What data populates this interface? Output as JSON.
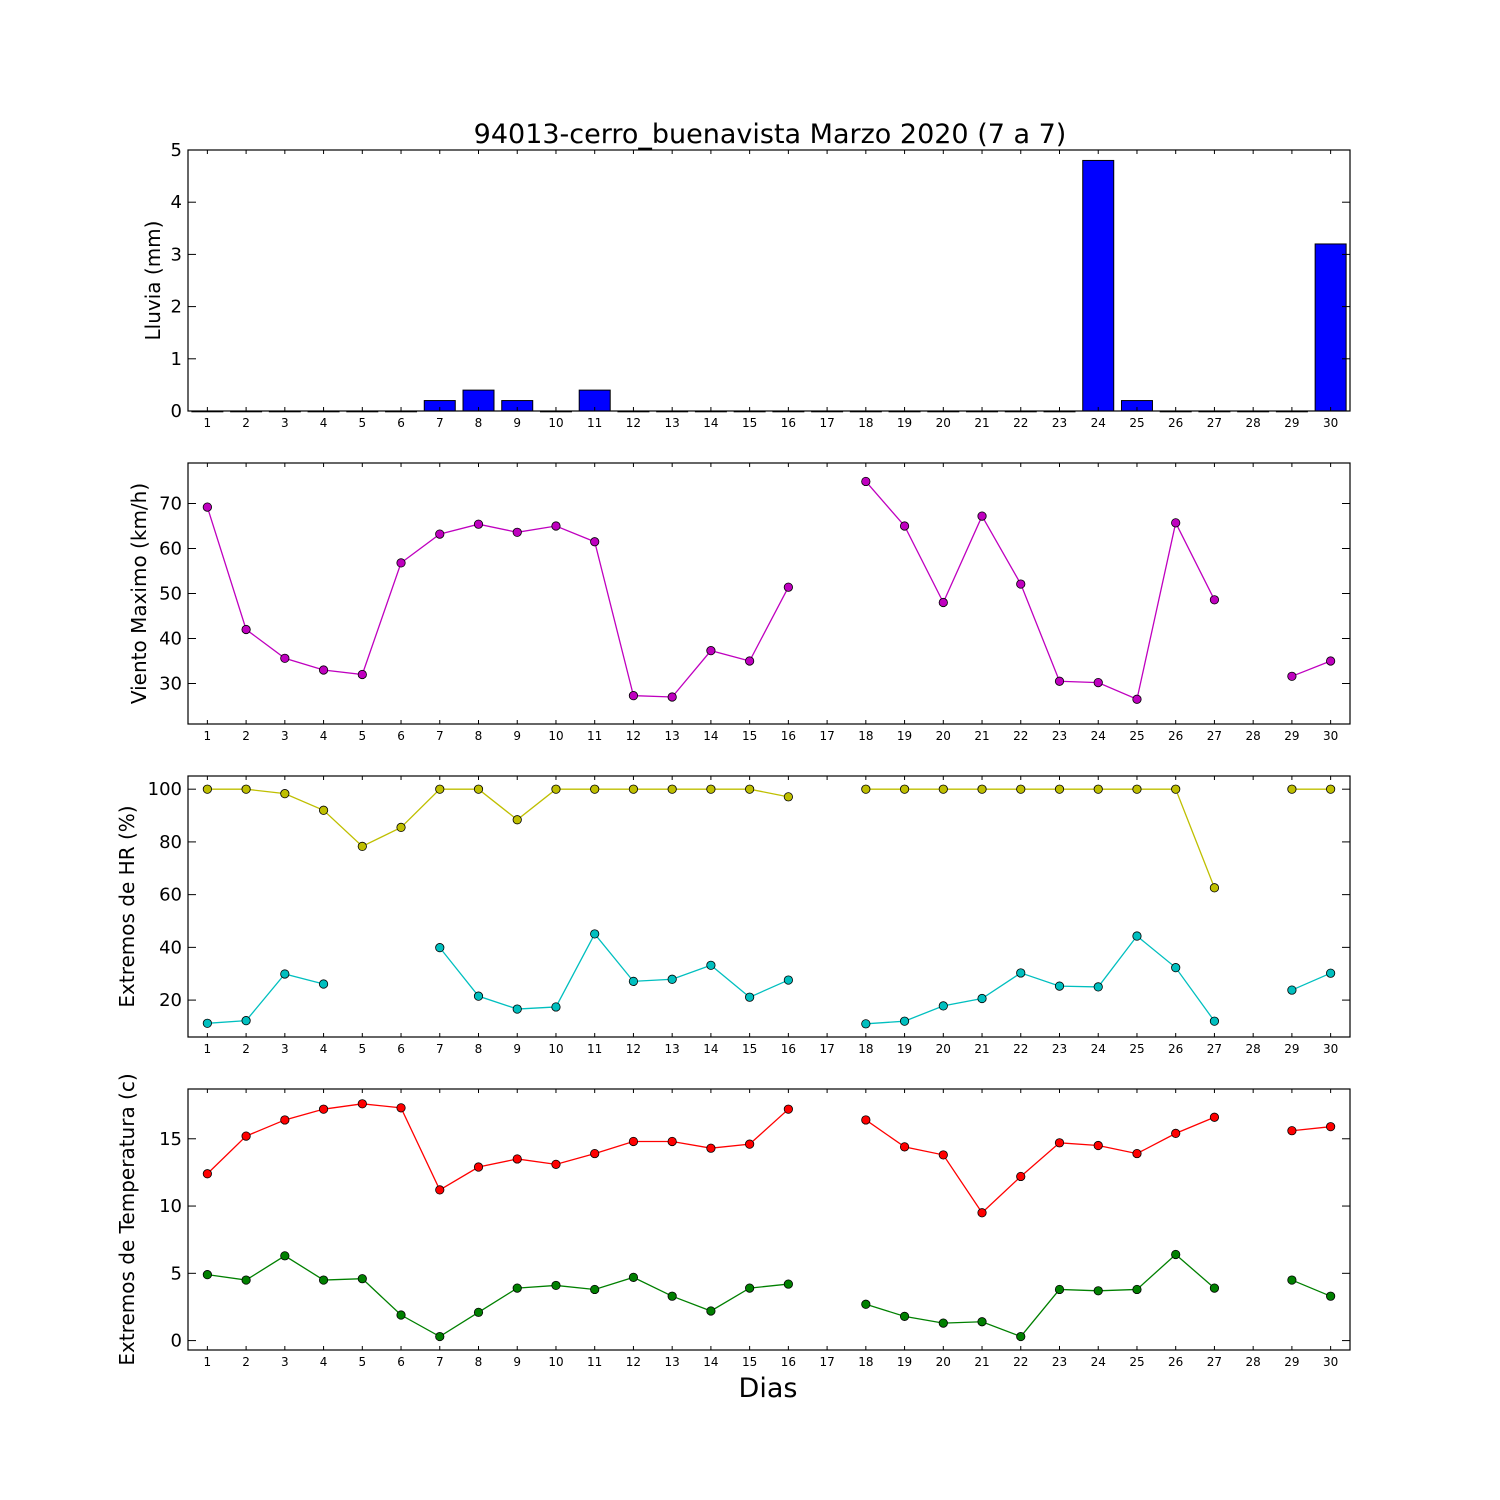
{
  "chart_data": {
    "title": "94013-cerro_buenavista Marzo 2020  (7 a 7)",
    "xlabel": "Dias",
    "x": [
      1,
      2,
      3,
      4,
      5,
      6,
      7,
      8,
      9,
      10,
      11,
      12,
      13,
      14,
      15,
      16,
      17,
      18,
      19,
      20,
      21,
      22,
      23,
      24,
      25,
      26,
      27,
      28,
      29,
      30
    ],
    "panels": [
      {
        "id": "lluvia",
        "type": "bar",
        "ylabel": "Lluvia (mm)",
        "ylim": [
          0,
          5
        ],
        "yticks": [
          0,
          1,
          2,
          3,
          4,
          5
        ],
        "series": [
          {
            "color": "#0000ff",
            "values": [
              0,
              0,
              0,
              0,
              0,
              0,
              0.2,
              0.4,
              0.2,
              0,
              0.4,
              0,
              0,
              0,
              0,
              0,
              0,
              0,
              0,
              0,
              0,
              0,
              0,
              4.8,
              0.2,
              0,
              0,
              0,
              0,
              3.2
            ]
          }
        ]
      },
      {
        "id": "viento",
        "type": "line",
        "ylabel": "Viento Maximo (km/h)",
        "ylim": [
          21,
          79
        ],
        "yticks": [
          30,
          40,
          50,
          60,
          70
        ],
        "series": [
          {
            "color": "#bf00bf",
            "values": [
              69.2,
              42,
              35.6,
              33,
              32,
              56.8,
              63.2,
              65.4,
              63.6,
              65,
              61.5,
              27.3,
              27,
              37.3,
              35,
              51.4,
              null,
              74.9,
              65,
              48,
              67.2,
              52.1,
              30.5,
              30.2,
              26.5,
              65.7,
              48.6,
              null,
              31.6,
              35
            ]
          }
        ]
      },
      {
        "id": "hr",
        "type": "line",
        "ylabel": "Extremos de HR (%)",
        "ylim": [
          6,
          105
        ],
        "yticks": [
          20,
          40,
          60,
          80,
          100
        ],
        "series": [
          {
            "color": "#bfbf00",
            "values": [
              100,
              100,
              98.3,
              92,
              78.3,
              85.5,
              100,
              100,
              88.4,
              100,
              100,
              100,
              100,
              100,
              100,
              97.1,
              null,
              100,
              100,
              100,
              100,
              100,
              100,
              100,
              100,
              100,
              62.6,
              null,
              100,
              100
            ]
          },
          {
            "color": "#00bfbf",
            "values": [
              11.2,
              12.2,
              29.9,
              26.1,
              null,
              null,
              39.9,
              21.5,
              16.6,
              17.4,
              45.1,
              27.1,
              27.9,
              33.2,
              21.1,
              27.6,
              null,
              11,
              12,
              17.8,
              20.6,
              30.3,
              25.3,
              25,
              44.3,
              32.3,
              12,
              null,
              23.8,
              30.2
            ]
          }
        ]
      },
      {
        "id": "temp",
        "type": "line",
        "ylabel": "Extremos de Temperatura (c)",
        "ylim": [
          -0.7,
          18.7
        ],
        "yticks": [
          0,
          5,
          10,
          15
        ],
        "series": [
          {
            "color": "#ff0000",
            "values": [
              12.4,
              15.2,
              16.4,
              17.2,
              17.6,
              17.3,
              11.2,
              12.9,
              13.5,
              13.1,
              13.9,
              14.8,
              14.8,
              14.3,
              14.6,
              17.2,
              null,
              16.4,
              14.4,
              13.8,
              9.5,
              12.2,
              14.7,
              14.5,
              13.9,
              15.4,
              16.6,
              null,
              15.6,
              15.9
            ]
          },
          {
            "color": "#008000",
            "values": [
              4.9,
              4.5,
              6.3,
              4.5,
              4.6,
              1.9,
              0.3,
              2.1,
              3.9,
              4.1,
              3.8,
              4.7,
              3.3,
              2.2,
              3.9,
              4.2,
              null,
              2.7,
              1.8,
              1.3,
              1.4,
              0.3,
              3.8,
              3.7,
              3.8,
              6.4,
              3.9,
              null,
              4.5,
              3.3
            ]
          }
        ]
      }
    ]
  }
}
